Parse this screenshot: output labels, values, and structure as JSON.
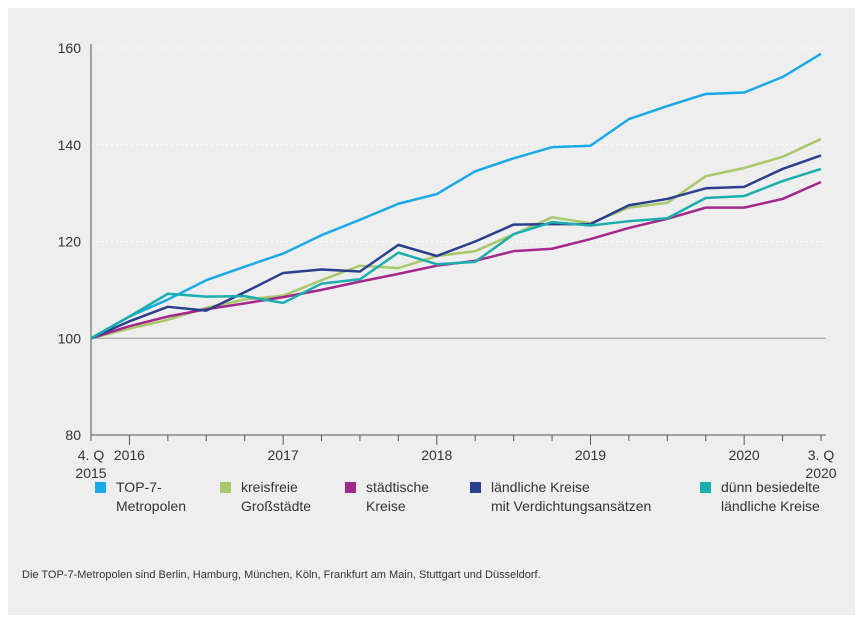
{
  "chart_data": {
    "type": "line",
    "categories": [
      "4. Q\n2015",
      "2016",
      null,
      null,
      null,
      "2017",
      null,
      null,
      null,
      "2018",
      null,
      null,
      null,
      "2019",
      null,
      null,
      null,
      "2020",
      null,
      "3. Q\n2020"
    ],
    "ylim": [
      80,
      160
    ],
    "yticks": [
      80,
      100,
      120,
      140,
      160
    ],
    "grid": true,
    "series": [
      {
        "name": "TOP-7-\nMetropolen",
        "color": "#1aa9e6",
        "values": [
          100,
          104.5,
          108,
          112,
          114.8,
          117.5,
          121.3,
          124.5,
          127.8,
          129.8,
          134.5,
          137.2,
          139.5,
          139.8,
          145.3,
          148,
          150.5,
          150.8,
          154,
          158.8
        ]
      },
      {
        "name": "kreisfreie\nGroßstädte",
        "color": "#a8c96a",
        "values": [
          100,
          102,
          103.8,
          106.3,
          108,
          108.8,
          112,
          115,
          114.5,
          117,
          118,
          121.5,
          125,
          123.8,
          127,
          128,
          133.5,
          135.2,
          137.5,
          141.2
        ]
      },
      {
        "name": "städtische\nKreise",
        "color": "#a3288c",
        "values": [
          100,
          102.5,
          104.5,
          106,
          107.2,
          108.5,
          110,
          111.7,
          113.3,
          115,
          116,
          118,
          118.5,
          120.5,
          122.8,
          124.7,
          127,
          127,
          128.8,
          132.3
        ]
      },
      {
        "name": "ländliche Kreise\nmit Verdichtungsansätzen",
        "color": "#2a3f8e",
        "values": [
          100,
          103.5,
          106.5,
          105.7,
          109.5,
          113.5,
          114.2,
          113.8,
          119.3,
          117,
          120,
          123.5,
          123.6,
          123.6,
          127.5,
          128.8,
          131,
          131.3,
          135,
          137.8
        ]
      },
      {
        "name": "dünn besiedelte\nländliche Kreise",
        "color": "#1aaeae",
        "values": [
          100,
          104.5,
          109.2,
          108.6,
          108.7,
          107.3,
          111.3,
          112.2,
          117.7,
          115.3,
          115.8,
          121.5,
          124,
          123.3,
          124.2,
          124.8,
          129,
          129.4,
          132.5,
          135
        ]
      }
    ],
    "footnote": "Die TOP-7-Metropolen sind Berlin, Hamburg, München, Köln, Frankfurt am Main, Stuttgart und Düsseldorf."
  }
}
